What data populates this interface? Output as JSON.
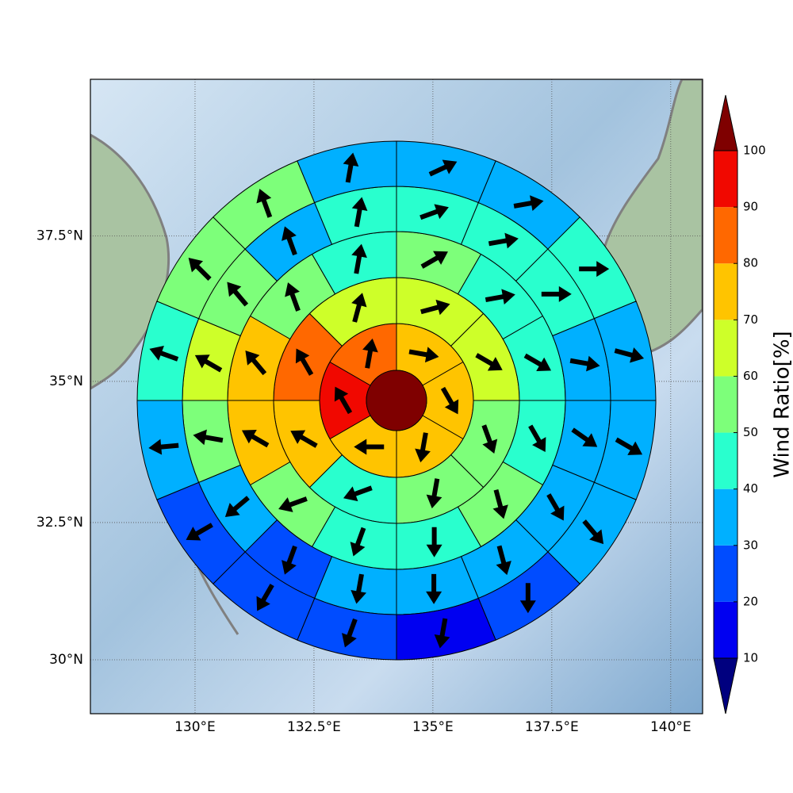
{
  "chart_data": {
    "type": "polar_grid_map",
    "xlim": [
      127.8,
      140.67
    ],
    "ylim": [
      29.0,
      40.1
    ],
    "xticks": [
      {
        "value": 130,
        "label": "130°E"
      },
      {
        "value": 132.5,
        "label": "132.5°E"
      },
      {
        "value": 135,
        "label": "135°E"
      },
      {
        "value": 137.5,
        "label": "137.5°E"
      },
      {
        "value": 140,
        "label": "140°E"
      }
    ],
    "yticks": [
      {
        "value": 30,
        "label": "30°N"
      },
      {
        "value": 32.5,
        "label": "32.5°N"
      },
      {
        "value": 35,
        "label": "35°N"
      },
      {
        "value": 37.5,
        "label": "37.5°N"
      }
    ],
    "grid": true,
    "colorbar": {
      "label": "Wind Ratio[%]",
      "levels": [
        10,
        20,
        30,
        40,
        50,
        60,
        70,
        80,
        90,
        100
      ],
      "colors": [
        "#00007f",
        "#0000f1",
        "#004cff",
        "#00b0ff",
        "#29ffce",
        "#7dff7a",
        "#ceff29",
        "#ffc400",
        "#ff6800",
        "#f10800",
        "#7f0000"
      ],
      "extend": "both"
    },
    "center_value": 100,
    "rings": [
      {
        "values": [
          75,
          75,
          75,
          75,
          95,
          85
        ],
        "directions": [
          100,
          150,
          190,
          270,
          330,
          10
        ]
      },
      {
        "values": [
          65,
          65,
          55,
          55,
          45,
          75,
          85,
          65
        ],
        "directions": [
          75,
          120,
          160,
          190,
          250,
          300,
          330,
          15
        ]
      },
      {
        "values": [
          55,
          45,
          45,
          45,
          55,
          45,
          45,
          55,
          75,
          75,
          55,
          45
        ],
        "directions": [
          60,
          80,
          120,
          150,
          165,
          180,
          200,
          250,
          300,
          320,
          340,
          10
        ]
      },
      {
        "values": [
          45,
          45,
          45,
          35,
          35,
          35,
          35,
          35,
          35,
          25,
          35,
          55,
          65,
          55,
          35,
          45
        ],
        "directions": [
          70,
          80,
          90,
          100,
          125,
          150,
          165,
          180,
          190,
          200,
          230,
          280,
          300,
          320,
          340,
          10
        ]
      },
      {
        "values": [
          35,
          35,
          45,
          35,
          35,
          35,
          25,
          15,
          25,
          25,
          25,
          35,
          45,
          55,
          55,
          35
        ],
        "directions": [
          65,
          80,
          90,
          105,
          120,
          140,
          180,
          190,
          200,
          210,
          240,
          265,
          290,
          315,
          340,
          10
        ]
      }
    ]
  }
}
